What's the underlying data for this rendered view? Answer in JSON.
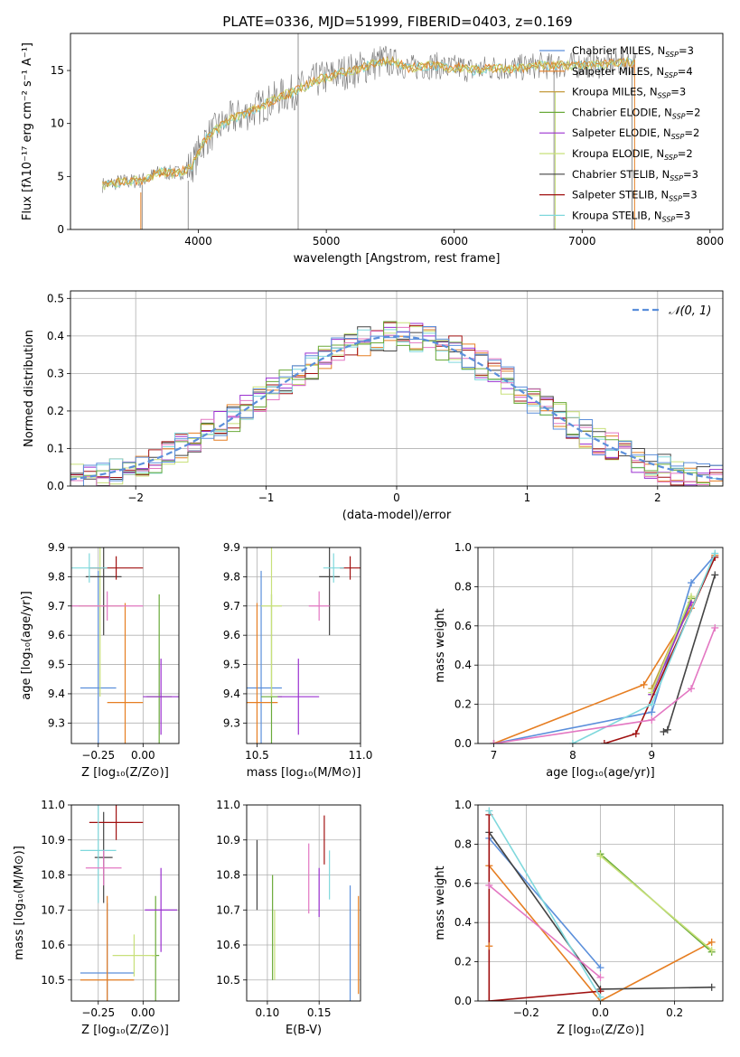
{
  "colors": {
    "Chabrier MILES": "#5b8fdb",
    "Salpeter MILES": "#e67e22",
    "Kroupa MILES": "#c49a3c",
    "Chabrier ELODIE": "#6aaa3a",
    "Salpeter ELODIE": "#9b30d0",
    "Kroupa ELODIE": "#c8e07a",
    "Chabrier STELIB": "#444444",
    "Salpeter STELIB": "#a01010",
    "Kroupa STELIB": "#7fd8dc",
    "pink": "#e377c2",
    "gauss": "#5b8fdb"
  },
  "chart_data": [
    {
      "type": "line",
      "title": "PLATE=0336, MJD=51999, FIBERID=0403, z=0.169",
      "xlabel": "wavelength [Angstrom, rest frame]",
      "ylabel": "Flux [fλ10⁻¹⁷ erg cm⁻² s⁻¹ A⁻¹]",
      "xlim": [
        3000,
        8100
      ],
      "ylim": [
        0,
        18.5
      ],
      "xticks": [
        "4000",
        "5000",
        "6000",
        "7000",
        "8000"
      ],
      "yticks": [
        "0",
        "5",
        "10",
        "15"
      ],
      "legend_position": "right",
      "legend": [
        {
          "label": "Chabrier MILES, N",
          "sub": "SSP",
          "val": "=3"
        },
        {
          "label": "Salpeter MILES, N",
          "sub": "SSP",
          "val": "=4"
        },
        {
          "label": "Kroupa MILES, N",
          "sub": "SSP",
          "val": "=3"
        },
        {
          "label": "Chabrier ELODIE, N",
          "sub": "SSP",
          "val": "=2"
        },
        {
          "label": "Salpeter ELODIE, N",
          "sub": "SSP",
          "val": "=2"
        },
        {
          "label": "Kroupa ELODIE, N",
          "sub": "SSP",
          "val": "=2"
        },
        {
          "label": "Chabrier STELIB, N",
          "sub": "SSP",
          "val": "=3"
        },
        {
          "label": "Salpeter STELIB, N",
          "sub": "SSP",
          "val": "=3"
        },
        {
          "label": "Kroupa STELIB, N",
          "sub": "SSP",
          "val": "=3"
        }
      ],
      "series": [
        {
          "name": "data",
          "x": [
            3250,
            3400,
            3550,
            3700,
            3850,
            3950,
            4050,
            4150,
            4250,
            4350,
            4450,
            4550,
            4650,
            4750,
            4850,
            4950,
            5050,
            5150,
            5250,
            5350,
            5450,
            5550,
            5650,
            5750,
            5850,
            5950,
            6050,
            6150,
            6250,
            6350,
            6450,
            6550,
            6650,
            6750,
            6850,
            6950,
            7050,
            7150,
            7250,
            7350,
            7420
          ],
          "y": [
            4.2,
            4.5,
            4.6,
            5.4,
            5.3,
            6.0,
            8.5,
            9.5,
            10.4,
            10.8,
            11.4,
            12.0,
            12.6,
            13.0,
            13.6,
            14.2,
            14.5,
            14.9,
            15.1,
            15.6,
            15.9,
            15.8,
            15.2,
            15.4,
            15.5,
            15.2,
            15.3,
            15.0,
            15.2,
            15.3,
            15.2,
            15.3,
            15.5,
            15.4,
            15.5,
            15.5,
            15.6,
            15.5,
            15.7,
            15.8,
            15.6
          ]
        }
      ]
    },
    {
      "type": "histogram",
      "xlabel": "(data-model)/error",
      "ylabel": "Normed distribution",
      "xlim": [
        -2.5,
        2.5
      ],
      "ylim": [
        0,
        0.52
      ],
      "xticks": [
        "−2",
        "−1",
        "0",
        "1",
        "2"
      ],
      "yticks": [
        "0.0",
        "0.1",
        "0.2",
        "0.3",
        "0.4",
        "0.5"
      ],
      "legend": "𝒩(0, 1)",
      "legend_position": "top-right",
      "bin_width": 0.1,
      "gauss": {
        "mu": 0,
        "sigma": 1
      }
    },
    {
      "type": "scatter",
      "xlabel": "Z [log₁₀(Z/Z⊙)]",
      "ylabel": "age [log₁₀(age/yr)]",
      "xlim": [
        -0.4,
        0.2
      ],
      "ylim": [
        9.23,
        9.9
      ],
      "xticks": [
        "−0.25",
        "0.00"
      ],
      "yticks": [
        "9.3",
        "9.4",
        "9.5",
        "9.6",
        "9.7",
        "9.8",
        "9.9"
      ],
      "points": [
        {
          "model": "Chabrier MILES",
          "x": -0.25,
          "xerr": 0.1,
          "y": 9.42,
          "yerr": 0.4
        },
        {
          "model": "Salpeter MILES",
          "x": -0.1,
          "xerr": 0.1,
          "y": 9.37,
          "yerr": 0.34
        },
        {
          "model": "Chabrier ELODIE",
          "x": 0.09,
          "xerr": 0.07,
          "y": 9.39,
          "yerr": 0.35
        },
        {
          "model": "Salpeter ELODIE",
          "x": 0.1,
          "xerr": 0.1,
          "y": 9.39,
          "yerr": 0.13
        },
        {
          "model": "Kroupa ELODIE",
          "x": -0.24,
          "xerr": 0.12,
          "y": 9.7,
          "yerr": 0.31
        },
        {
          "model": "Chabrier STELIB",
          "x": -0.22,
          "xerr": 0.1,
          "y": 9.8,
          "yerr": 0.2
        },
        {
          "model": "Salpeter STELIB",
          "x": -0.15,
          "xerr": 0.15,
          "y": 9.83,
          "yerr": 0.04
        },
        {
          "model": "Kroupa STELIB",
          "x": -0.3,
          "xerr": 0.1,
          "y": 9.83,
          "yerr": 0.05
        },
        {
          "model": "pink",
          "x": -0.2,
          "xerr": 0.2,
          "y": 9.7,
          "yerr": 0.05
        }
      ]
    },
    {
      "type": "scatter",
      "xlabel": "mass [log₁₀(M/M⊙)]",
      "xlim": [
        10.45,
        11.0
      ],
      "ylim": [
        9.23,
        9.9
      ],
      "xticks": [
        "10.5",
        "11.0"
      ],
      "yticks": [
        "9.3",
        "9.4",
        "9.5",
        "9.6",
        "9.7",
        "9.8",
        "9.9"
      ],
      "points": [
        {
          "model": "Chabrier MILES",
          "x": 10.52,
          "xerr": 0.1,
          "y": 9.42,
          "yerr": 0.4
        },
        {
          "model": "Salpeter MILES",
          "x": 10.5,
          "xerr": 0.1,
          "y": 9.37,
          "yerr": 0.34
        },
        {
          "model": "Chabrier ELODIE",
          "x": 10.57,
          "xerr": 0.05,
          "y": 9.39,
          "yerr": 0.35
        },
        {
          "model": "Salpeter ELODIE",
          "x": 10.7,
          "xerr": 0.1,
          "y": 9.39,
          "yerr": 0.13
        },
        {
          "model": "Kroupa ELODIE",
          "x": 10.57,
          "xerr": 0.05,
          "y": 9.7,
          "yerr": 0.31
        },
        {
          "model": "Chabrier STELIB",
          "x": 10.85,
          "xerr": 0.05,
          "y": 9.8,
          "yerr": 0.2
        },
        {
          "model": "Salpeter STELIB",
          "x": 10.95,
          "xerr": 0.05,
          "y": 9.83,
          "yerr": 0.04
        },
        {
          "model": "Kroupa STELIB",
          "x": 10.87,
          "xerr": 0.05,
          "y": 9.83,
          "yerr": 0.05
        },
        {
          "model": "pink",
          "x": 10.8,
          "xerr": 0.05,
          "y": 9.7,
          "yerr": 0.05
        }
      ]
    },
    {
      "type": "line",
      "xlabel": "age [log₁₀(age/yr)]",
      "ylabel": "mass weight",
      "xlim": [
        6.8,
        9.9
      ],
      "ylim": [
        0,
        1.0
      ],
      "xticks": [
        "7",
        "8",
        "9"
      ],
      "yticks": [
        "0.0",
        "0.2",
        "0.4",
        "0.6",
        "0.8",
        "1.0"
      ],
      "series": [
        {
          "model": "Chabrier MILES",
          "x": [
            7.0,
            9.0,
            9.5,
            9.8
          ],
          "y": [
            0.0,
            0.16,
            0.82,
            0.96
          ]
        },
        {
          "model": "Salpeter MILES",
          "x": [
            7.0,
            8.9,
            9.5,
            9.8
          ],
          "y": [
            0.0,
            0.3,
            0.69,
            0.96
          ]
        },
        {
          "model": "Kroupa MILES",
          "x": [
            9.0,
            9.5
          ],
          "y": [
            0.28,
            0.74
          ]
        },
        {
          "model": "Chabrier ELODIE",
          "x": [
            9.0,
            9.5
          ],
          "y": [
            0.25,
            0.74
          ]
        },
        {
          "model": "Salpeter ELODIE",
          "x": [
            9.0,
            9.5
          ],
          "y": [
            0.25,
            0.72
          ]
        },
        {
          "model": "Kroupa ELODIE",
          "x": [
            9.0,
            9.5
          ],
          "y": [
            0.26,
            0.75
          ]
        },
        {
          "model": "Chabrier STELIB",
          "x": [
            9.15,
            9.2,
            9.8
          ],
          "y": [
            0.06,
            0.07,
            0.86
          ]
        },
        {
          "model": "Salpeter STELIB",
          "x": [
            8.4,
            8.8,
            9.8
          ],
          "y": [
            0.0,
            0.05,
            0.95
          ]
        },
        {
          "model": "Kroupa STELIB",
          "x": [
            8.0,
            9.0,
            9.8
          ],
          "y": [
            0.0,
            0.2,
            0.97
          ]
        },
        {
          "model": "pink",
          "x": [
            7.0,
            9.0,
            9.5,
            9.8
          ],
          "y": [
            0.0,
            0.12,
            0.28,
            0.59
          ]
        }
      ]
    },
    {
      "type": "scatter",
      "xlabel": "Z [log₁₀(Z/Z⊙)]",
      "ylabel": "mass [log₁₀(M/M⊙)]",
      "xlim": [
        -0.4,
        0.2
      ],
      "ylim": [
        10.44,
        11.0
      ],
      "xticks": [
        "−0.25",
        "0.00"
      ],
      "yticks": [
        "10.5",
        "10.6",
        "10.7",
        "10.8",
        "10.9",
        "11.0"
      ],
      "points": [
        {
          "model": "Chabrier MILES",
          "x": -0.2,
          "xerr": 0.15,
          "y": 10.52,
          "yerr": 0.2
        },
        {
          "model": "Salpeter MILES",
          "x": -0.2,
          "xerr": 0.15,
          "y": 10.5,
          "yerr": 0.24
        },
        {
          "model": "Chabrier ELODIE",
          "x": 0.07,
          "xerr": 0.02,
          "y": 10.57,
          "yerr": 0.17
        },
        {
          "model": "Salpeter ELODIE",
          "x": 0.1,
          "xerr": 0.09,
          "y": 10.7,
          "yerr": 0.12
        },
        {
          "model": "Kroupa ELODIE",
          "x": -0.05,
          "xerr": 0.12,
          "y": 10.57,
          "yerr": 0.06
        },
        {
          "model": "Chabrier STELIB",
          "x": -0.22,
          "xerr": 0.05,
          "y": 10.85,
          "yerr": 0.13
        },
        {
          "model": "Salpeter STELIB",
          "x": -0.15,
          "xerr": 0.15,
          "y": 10.95,
          "yerr": 0.05
        },
        {
          "model": "Kroupa STELIB",
          "x": -0.25,
          "xerr": 0.1,
          "y": 10.87,
          "yerr": 0.15
        },
        {
          "model": "pink",
          "x": -0.22,
          "xerr": 0.1,
          "y": 10.82,
          "yerr": 0.05
        }
      ]
    },
    {
      "type": "scatter",
      "xlabel": "E(B-V)",
      "xlim": [
        0.08,
        0.19
      ],
      "ylim": [
        10.44,
        11.0
      ],
      "xticks": [
        "0.10",
        "0.15"
      ],
      "yticks": [
        "10.5",
        "10.6",
        "10.7",
        "10.8",
        "10.9",
        "11.0"
      ],
      "points": [
        {
          "model": "Chabrier MILES",
          "x": 0.18,
          "y": 10.52,
          "yerr": 0.25
        },
        {
          "model": "Salpeter MILES",
          "x": 0.188,
          "y": 10.6,
          "yerr": 0.14
        },
        {
          "model": "Chabrier ELODIE",
          "x": 0.105,
          "y": 10.65,
          "yerr": 0.15
        },
        {
          "model": "Salpeter ELODIE",
          "x": 0.15,
          "y": 10.75,
          "yerr": 0.07
        },
        {
          "model": "Kroupa ELODIE",
          "x": 0.107,
          "y": 10.6,
          "yerr": 0.1
        },
        {
          "model": "Chabrier STELIB",
          "x": 0.09,
          "y": 10.8,
          "yerr": 0.1
        },
        {
          "model": "Salpeter STELIB",
          "x": 0.155,
          "y": 10.9,
          "yerr": 0.07
        },
        {
          "model": "Kroupa STELIB",
          "x": 0.16,
          "y": 10.8,
          "yerr": 0.07
        },
        {
          "model": "pink",
          "x": 0.14,
          "y": 10.79,
          "yerr": 0.1
        }
      ]
    },
    {
      "type": "line",
      "xlabel": "Z [log₁₀(Z/Z⊙)]",
      "ylabel": "mass weight",
      "xlim": [
        -0.33,
        0.33
      ],
      "ylim": [
        0,
        1.0
      ],
      "xticks": [
        "−0.2",
        "0.0",
        "0.2"
      ],
      "yticks": [
        "0.0",
        "0.2",
        "0.4",
        "0.6",
        "0.8",
        "1.0"
      ],
      "series": [
        {
          "model": "Chabrier MILES",
          "x": [
            -0.3,
            0.0
          ],
          "y": [
            0.83,
            0.17
          ]
        },
        {
          "model": "Salpeter MILES",
          "x": [
            -0.3,
            0.0,
            0.3
          ],
          "y": [
            0.69,
            0.0,
            0.3
          ]
        },
        {
          "model": "Chabrier ELODIE",
          "x": [
            0.0,
            0.3
          ],
          "y": [
            0.75,
            0.25
          ]
        },
        {
          "model": "Kroupa ELODIE",
          "x": [
            0.0,
            0.3
          ],
          "y": [
            0.74,
            0.26
          ]
        },
        {
          "model": "Chabrier STELIB",
          "x": [
            -0.3,
            0.0,
            0.3
          ],
          "y": [
            0.86,
            0.06,
            0.07
          ]
        },
        {
          "model": "Salpeter STELIB",
          "x": [
            -0.3,
            -0.3,
            0.0
          ],
          "y": [
            0.95,
            0.0,
            0.05
          ]
        },
        {
          "model": "Kroupa STELIB",
          "x": [
            -0.3,
            0.0
          ],
          "y": [
            0.97,
            0.02
          ]
        },
        {
          "model": "pink",
          "x": [
            -0.3,
            0.0
          ],
          "y": [
            0.59,
            0.12
          ]
        },
        {
          "model": "Salpeter MILES",
          "x": [
            -0.3
          ],
          "y": [
            0.28
          ]
        }
      ]
    }
  ]
}
